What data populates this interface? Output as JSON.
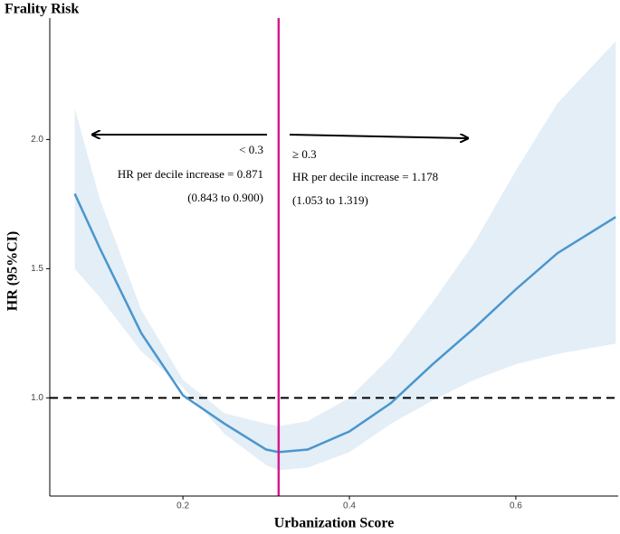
{
  "chart_data": {
    "type": "line",
    "title": "Frality Risk",
    "x_label": "Urbanization Score",
    "y_label": "HR (95%CI)",
    "x": [
      0.07,
      0.1,
      0.15,
      0.2,
      0.25,
      0.3,
      0.315,
      0.35,
      0.4,
      0.45,
      0.5,
      0.55,
      0.6,
      0.65,
      0.72
    ],
    "values": [
      1.79,
      1.58,
      1.25,
      1.01,
      0.9,
      0.8,
      0.79,
      0.8,
      0.87,
      0.98,
      1.13,
      1.27,
      1.42,
      1.56,
      1.7
    ],
    "lower": [
      1.5,
      1.39,
      1.18,
      1.04,
      0.86,
      0.74,
      0.72,
      0.73,
      0.79,
      0.9,
      0.99,
      1.07,
      1.13,
      1.17,
      1.21
    ],
    "upper": [
      2.12,
      1.77,
      1.34,
      1.07,
      0.94,
      0.9,
      0.89,
      0.91,
      1.0,
      1.16,
      1.37,
      1.6,
      1.88,
      2.14,
      2.38
    ],
    "color": "#4a96cc",
    "band_color": "#e3eef7",
    "hline": 1.0,
    "vline": 0.315,
    "vline_color": "#d6198c",
    "xlim": [
      0.04,
      0.723
    ],
    "ylim": [
      0.62,
      2.47
    ],
    "xticks": [
      0.2,
      0.4,
      0.6
    ],
    "yticks": [
      {
        "value": 1,
        "label": "1.0"
      },
      1.5,
      {
        "value": 2,
        "label": "2.0"
      }
    ],
    "annotations": [
      "< 0.3",
      "HR per decile increase = 0.871",
      "(0.843 to 0.900)",
      "≥ 0.3",
      "HR per decile increase = 1.178",
      "(1.053 to 1.319)"
    ]
  }
}
